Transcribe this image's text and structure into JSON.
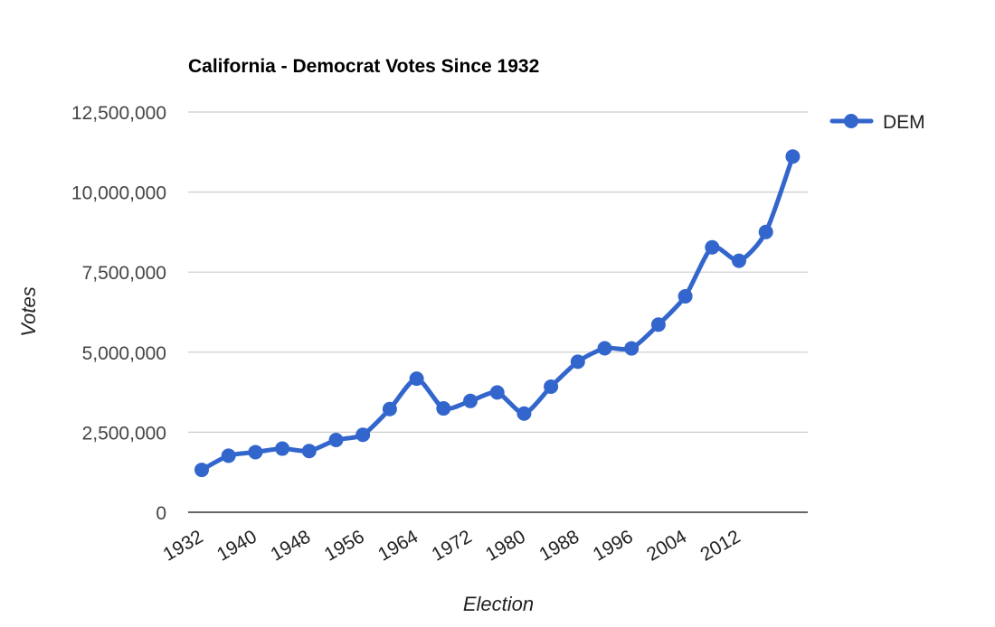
{
  "chart_data": {
    "type": "line",
    "title": "California - Democrat Votes Since 1932",
    "xlabel": "Election",
    "ylabel": "Votes",
    "x": [
      1932,
      1936,
      1940,
      1944,
      1948,
      1952,
      1956,
      1960,
      1964,
      1968,
      1972,
      1976,
      1980,
      1984,
      1988,
      1992,
      1996,
      2000,
      2004,
      2008,
      2012,
      2016,
      2020
    ],
    "x_tick_labels": [
      "1932",
      "1940",
      "1948",
      "1956",
      "1964",
      "1972",
      "1980",
      "1988",
      "1996",
      "2004",
      "2012"
    ],
    "y_tick_labels": [
      "0",
      "2,500,000",
      "5,000,000",
      "7,500,000",
      "10,000,000",
      "12,500,000"
    ],
    "ylim": [
      0,
      12500000
    ],
    "grid": true,
    "legend_position": "top-right",
    "series": [
      {
        "name": "DEM",
        "color": "#3366cc",
        "values": [
          1324000,
          1766000,
          1878000,
          1988000,
          1913000,
          2257000,
          2420000,
          3224000,
          4172000,
          3244000,
          3476000,
          3742000,
          3083000,
          3922000,
          4702000,
          5121000,
          5119000,
          5861000,
          6745000,
          8274000,
          7855000,
          8753000,
          11110000
        ]
      }
    ]
  }
}
